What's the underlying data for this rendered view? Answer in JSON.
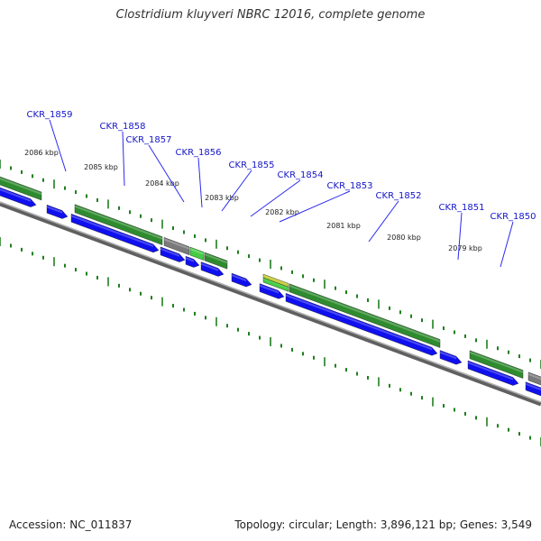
{
  "title": "Clostridium kluyveri NBRC 12016, complete genome",
  "footer": {
    "accession_label": "Accession:",
    "accession": "NC_011837",
    "topology_label": "Topology:",
    "topology": "circular",
    "length_label": "Length:",
    "length": "3,896,121 bp",
    "genes_label": "Genes:",
    "genes": "3,549"
  },
  "colors": {
    "background": "#ffffff",
    "title": "#333333",
    "gene_label": "#1414c8",
    "leader_line": "#2a2af0",
    "cds_blue": "#1010ee",
    "cds_green": "#2e8b2e",
    "cds_light_green": "#44cc44",
    "cds_gray": "#7a7a7a",
    "rna_yellow": "#c8d040",
    "tick_green": "#1f7f1f",
    "backbone": "#808080"
  },
  "ruler_labels": [
    "2086 kbp",
    "2085 kbp",
    "2084 kbp",
    "2083 kbp",
    "2082 kbp",
    "2081 kbp",
    "2080 kbp",
    "2079 kbp"
  ],
  "gene_labels": [
    "CKR_1859",
    "CKR_1858",
    "CKR_1857",
    "CKR_1856",
    "CKR_1855",
    "CKR_1854",
    "CKR_1853",
    "CKR_1852",
    "CKR_1851",
    "CKR_1850"
  ]
}
